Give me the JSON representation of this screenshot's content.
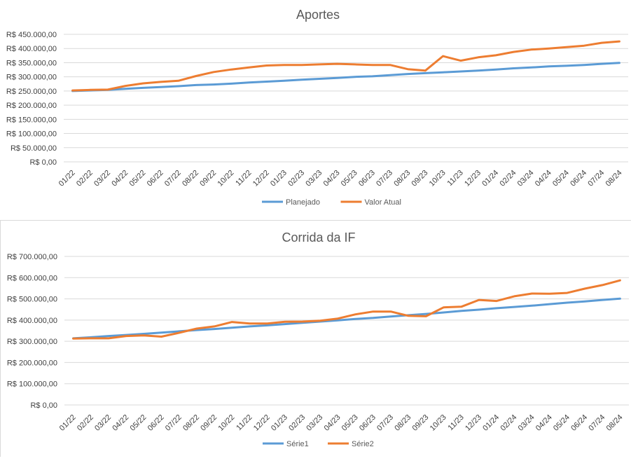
{
  "colors": {
    "series1": "#5b9bd5",
    "series2": "#ed7d31",
    "grid": "#d9d9d9",
    "text": "#595959",
    "axis_text": "#404040"
  },
  "chart_data": [
    {
      "type": "line",
      "title": "Aportes",
      "xlabel": "",
      "ylabel": "",
      "ylim": [
        0,
        450000
      ],
      "y_step": 50000,
      "grid": true,
      "legend_position": "bottom",
      "x": [
        "01/22",
        "02/22",
        "03/22",
        "04/22",
        "05/22",
        "06/22",
        "07/22",
        "08/22",
        "09/22",
        "10/22",
        "11/22",
        "12/22",
        "01/23",
        "02/23",
        "03/23",
        "04/23",
        "05/23",
        "06/23",
        "07/23",
        "08/23",
        "09/23",
        "10/23",
        "11/23",
        "12/23",
        "01/24",
        "02/24",
        "03/24",
        "04/24",
        "05/24",
        "06/24",
        "07/24",
        "08/24"
      ],
      "y_tick_labels": [
        "R$ 0,00",
        "R$ 50.000,00",
        "R$ 100.000,00",
        "R$ 150.000,00",
        "R$ 200.000,00",
        "R$ 250.000,00",
        "R$ 300.000,00",
        "R$ 350.000,00",
        "R$ 400.000,00",
        "R$ 450.000,00"
      ],
      "series": [
        {
          "name": "Planejado",
          "color": "#5b9bd5",
          "values": [
            250000,
            252000,
            254000,
            258000,
            261000,
            264000,
            267000,
            271000,
            273000,
            276000,
            280000,
            283000,
            286000,
            290000,
            293000,
            296000,
            300000,
            302000,
            306000,
            310000,
            313000,
            316000,
            319000,
            322000,
            326000,
            330000,
            333000,
            337000,
            339000,
            342000,
            346000,
            349000
          ]
        },
        {
          "name": "Valor Atual",
          "color": "#ed7d31",
          "values": [
            252000,
            254000,
            255000,
            268000,
            277000,
            282000,
            286000,
            303000,
            317000,
            326000,
            333000,
            340000,
            342000,
            342000,
            344000,
            346000,
            344000,
            342000,
            342000,
            327000,
            322000,
            373000,
            357000,
            369000,
            376000,
            388000,
            396000,
            400000,
            405000,
            410000,
            420000,
            425000
          ]
        }
      ]
    },
    {
      "type": "line",
      "title": "Corrida da IF",
      "xlabel": "",
      "ylabel": "",
      "ylim": [
        0,
        700000
      ],
      "y_step": 100000,
      "grid": true,
      "legend_position": "bottom",
      "x": [
        "01/22",
        "02/22",
        "03/22",
        "04/22",
        "05/22",
        "06/22",
        "07/22",
        "08/22",
        "09/22",
        "10/22",
        "11/22",
        "12/22",
        "01/23",
        "02/23",
        "03/23",
        "04/23",
        "05/23",
        "06/23",
        "07/23",
        "08/23",
        "09/23",
        "10/23",
        "11/23",
        "12/23",
        "01/24",
        "02/24",
        "03/24",
        "04/24",
        "05/24",
        "06/24",
        "07/24",
        "08/24"
      ],
      "y_tick_labels": [
        "R$ 0,00",
        "R$ 100.000,00",
        "R$ 200.000,00",
        "R$ 300.000,00",
        "R$ 400.000,00",
        "R$ 500.000,00",
        "R$ 600.000,00",
        "R$ 700.000,00"
      ],
      "series": [
        {
          "name": "Série1",
          "color": "#5b9bd5",
          "values": [
            314000,
            319000,
            325000,
            330000,
            335000,
            341000,
            347000,
            353000,
            358000,
            364000,
            370000,
            375000,
            381000,
            387000,
            393000,
            399000,
            405000,
            410000,
            417000,
            423000,
            429000,
            436000,
            443000,
            449000,
            456000,
            462000,
            468000,
            475000,
            482000,
            488000,
            495000,
            501000
          ]
        },
        {
          "name": "Série2",
          "color": "#ed7d31",
          "values": [
            313000,
            314000,
            314000,
            325000,
            328000,
            322000,
            340000,
            360000,
            370000,
            391000,
            384000,
            384000,
            392000,
            393000,
            397000,
            407000,
            427000,
            440000,
            440000,
            420000,
            418000,
            460000,
            463000,
            495000,
            490000,
            512000,
            525000,
            524000,
            528000,
            548000,
            565000,
            587000
          ]
        }
      ]
    }
  ]
}
